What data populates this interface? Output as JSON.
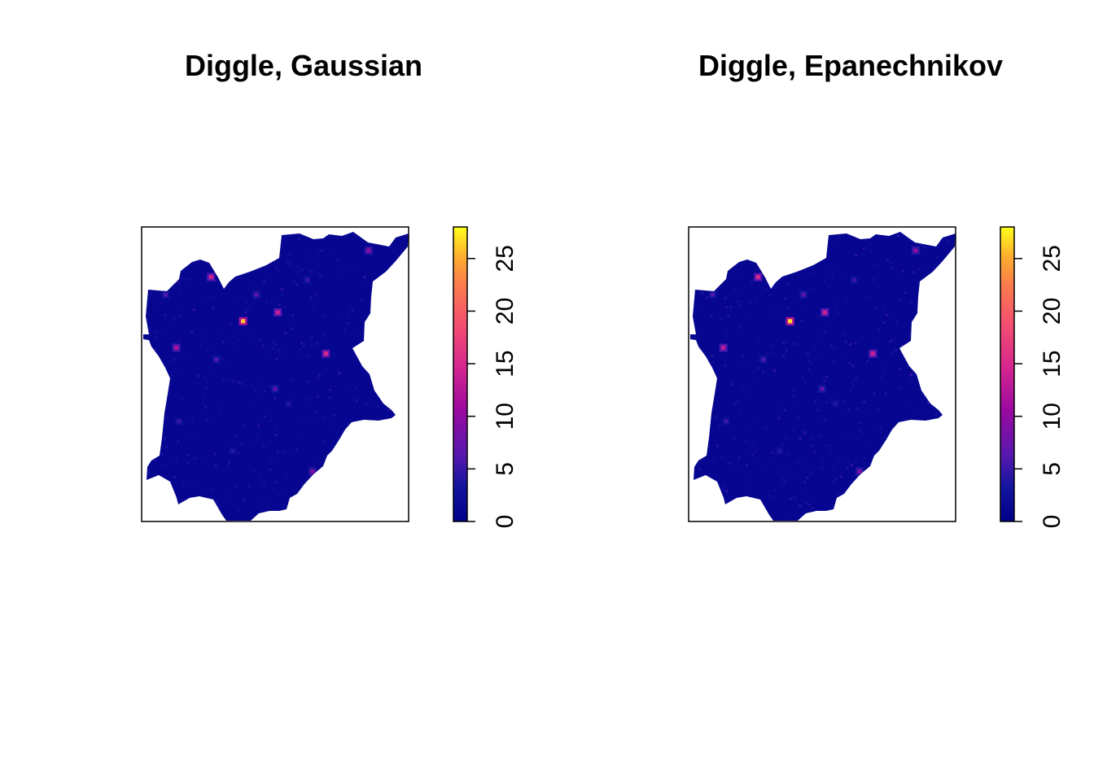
{
  "chart_data": [
    {
      "type": "heatmap",
      "title": "Diggle, Gaussian",
      "xlabel": "",
      "ylabel": "",
      "colorbar": {
        "range": [
          0,
          28
        ],
        "ticks": [
          0,
          5,
          10,
          15,
          20,
          25
        ],
        "palette": [
          "#00008B",
          "#3C1FA8",
          "#8B0AA5",
          "#DB2B8E",
          "#F5556A",
          "#FC8C41",
          "#FFFF00"
        ]
      },
      "background_level": 1,
      "hotspots": [
        {
          "x": 0.38,
          "y": 0.68,
          "value": 26
        },
        {
          "x": 0.26,
          "y": 0.83,
          "value": 14
        },
        {
          "x": 0.51,
          "y": 0.71,
          "value": 14
        },
        {
          "x": 0.69,
          "y": 0.57,
          "value": 15
        },
        {
          "x": 0.13,
          "y": 0.59,
          "value": 12
        },
        {
          "x": 0.85,
          "y": 0.92,
          "value": 10
        },
        {
          "x": 0.64,
          "y": 0.17,
          "value": 9
        },
        {
          "x": 0.43,
          "y": 0.77,
          "value": 7
        },
        {
          "x": 0.5,
          "y": 0.45,
          "value": 7
        },
        {
          "x": 0.09,
          "y": 0.77,
          "value": 6
        },
        {
          "x": 0.28,
          "y": 0.55,
          "value": 6
        },
        {
          "x": 0.14,
          "y": 0.34,
          "value": 5
        },
        {
          "x": 0.62,
          "y": 0.82,
          "value": 5
        },
        {
          "x": 0.34,
          "y": 0.24,
          "value": 4
        },
        {
          "x": 0.55,
          "y": 0.4,
          "value": 4
        }
      ]
    },
    {
      "type": "heatmap",
      "title": "Diggle, Epanechnikov",
      "xlabel": "",
      "ylabel": "",
      "colorbar": {
        "range": [
          0,
          28
        ],
        "ticks": [
          0,
          5,
          10,
          15,
          20,
          25
        ],
        "palette": [
          "#00008B",
          "#3C1FA8",
          "#8B0AA5",
          "#DB2B8E",
          "#F5556A",
          "#FC8C41",
          "#FFFF00"
        ]
      },
      "background_level": 1,
      "hotspots": [
        {
          "x": 0.38,
          "y": 0.68,
          "value": 27
        },
        {
          "x": 0.26,
          "y": 0.83,
          "value": 15
        },
        {
          "x": 0.51,
          "y": 0.71,
          "value": 14
        },
        {
          "x": 0.69,
          "y": 0.57,
          "value": 14
        },
        {
          "x": 0.13,
          "y": 0.59,
          "value": 13
        },
        {
          "x": 0.85,
          "y": 0.92,
          "value": 10
        },
        {
          "x": 0.64,
          "y": 0.17,
          "value": 9
        },
        {
          "x": 0.43,
          "y": 0.77,
          "value": 7
        },
        {
          "x": 0.5,
          "y": 0.45,
          "value": 7
        },
        {
          "x": 0.09,
          "y": 0.77,
          "value": 6
        },
        {
          "x": 0.28,
          "y": 0.55,
          "value": 6
        },
        {
          "x": 0.14,
          "y": 0.34,
          "value": 5
        },
        {
          "x": 0.62,
          "y": 0.82,
          "value": 5
        },
        {
          "x": 0.34,
          "y": 0.24,
          "value": 4
        },
        {
          "x": 0.55,
          "y": 0.4,
          "value": 4
        }
      ]
    }
  ]
}
